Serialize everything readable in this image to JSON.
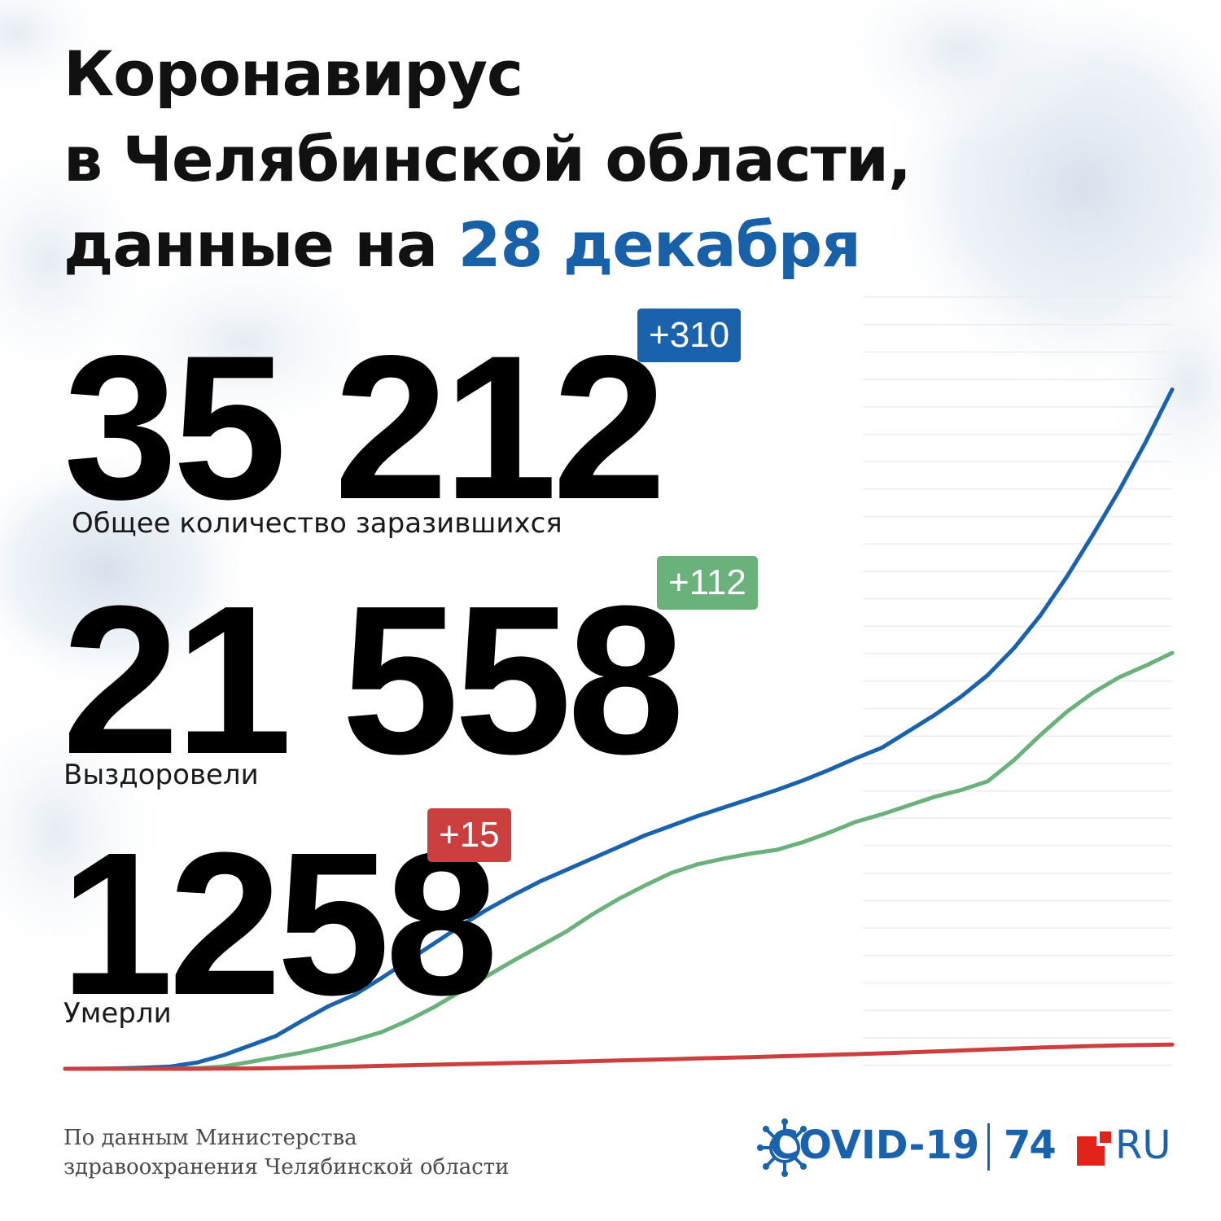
{
  "title": {
    "line1": "Коронавирус",
    "line2": "в Челябинской области,",
    "line3_prefix": "данные на ",
    "line3_date": "28 декабря"
  },
  "stats": {
    "total": {
      "value": "35 212",
      "delta": "+310",
      "label": "Общее количество заразившихся",
      "color": "#1b62ad"
    },
    "recovered": {
      "value": "21 558",
      "delta": "+112",
      "label": "Выздоровели",
      "color": "#6ab17c"
    },
    "deaths": {
      "value": "1258",
      "delta": "+15",
      "label": "Умерли",
      "color": "#cc3f3f"
    }
  },
  "source": {
    "line1": "По данным Министерства",
    "line2": "здравоохранения Челябинской области"
  },
  "logo": {
    "covid": "COVID-19",
    "site_number": "74",
    "site_suffix": "RU",
    "brand_red": "#e2231a"
  },
  "chart_data": {
    "type": "line",
    "ylim": [
      0,
      40000
    ],
    "grid": true,
    "series": [
      {
        "color": "#1b62ad",
        "values": [
          0,
          5,
          20,
          60,
          120,
          320,
          700,
          1200,
          1700,
          2500,
          3250,
          3850,
          4700,
          5600,
          6500,
          7400,
          8250,
          9000,
          9700,
          10300,
          10900,
          11500,
          12100,
          12600,
          13100,
          13550,
          14000,
          14450,
          14950,
          15500,
          16100,
          16650,
          17500,
          18350,
          19300,
          20400,
          21800,
          23500,
          25500,
          27700,
          30000,
          32500,
          35212
        ]
      },
      {
        "color": "#6ab17c",
        "values": [
          0,
          0,
          0,
          0,
          0,
          30,
          120,
          350,
          600,
          850,
          1150,
          1500,
          1900,
          2500,
          3200,
          4000,
          4800,
          5600,
          6350,
          7100,
          8000,
          8800,
          9500,
          10150,
          10600,
          10900,
          11150,
          11350,
          11750,
          12250,
          12800,
          13200,
          13650,
          14100,
          14450,
          14900,
          16000,
          17300,
          18500,
          19500,
          20300,
          20900,
          21558
        ]
      },
      {
        "color": "#cc3f3f",
        "values": [
          0,
          0,
          0,
          0,
          0,
          2,
          8,
          18,
          35,
          60,
          90,
          120,
          150,
          180,
          210,
          240,
          270,
          300,
          330,
          360,
          395,
          430,
          465,
          500,
          535,
          570,
          605,
          640,
          680,
          720,
          760,
          800,
          850,
          900,
          950,
          1000,
          1050,
          1100,
          1140,
          1180,
          1210,
          1235,
          1258
        ]
      }
    ]
  }
}
